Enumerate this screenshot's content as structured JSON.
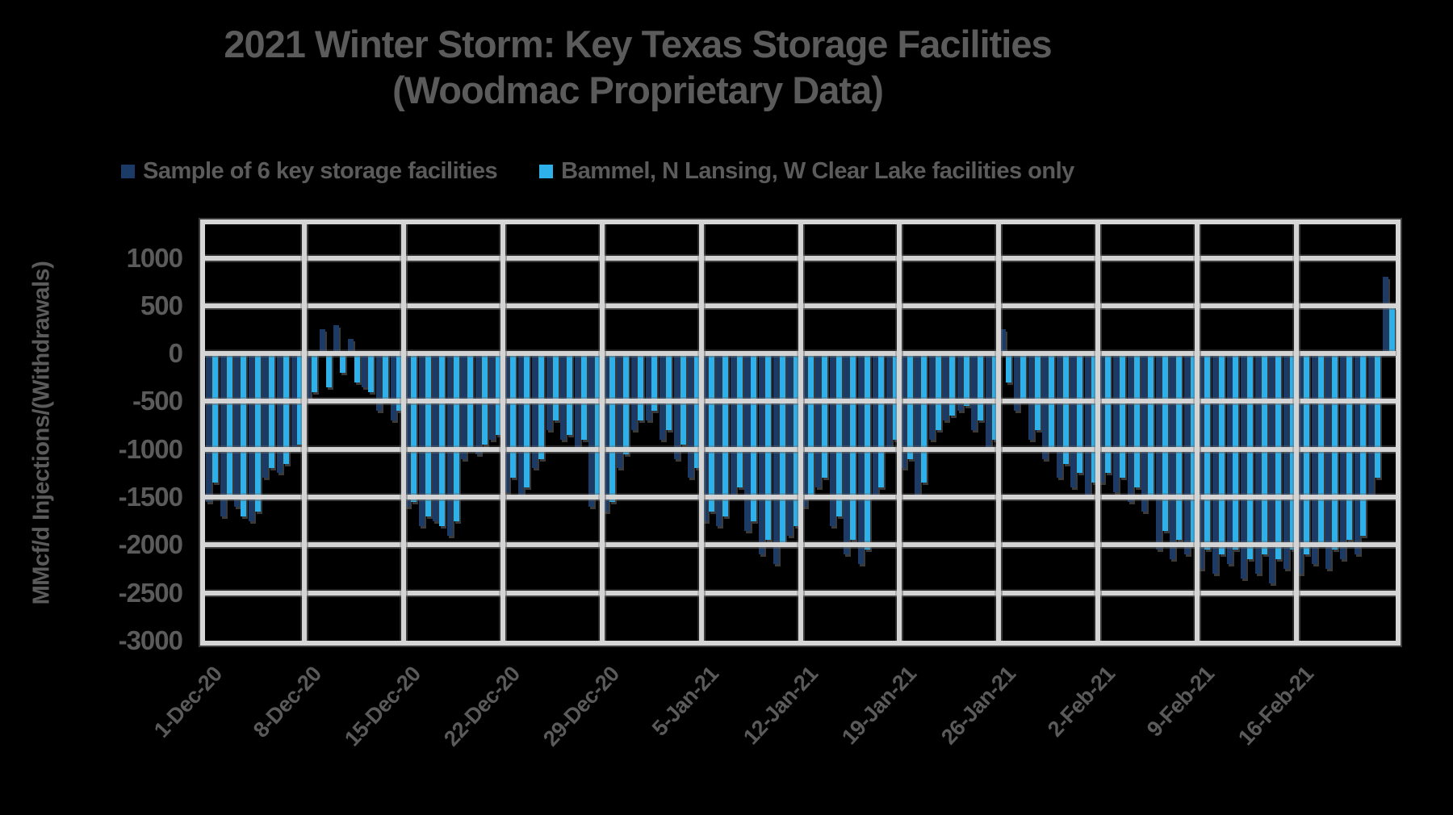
{
  "title": {
    "line1": "2021 Winter Storm: Key Texas Storage Facilities",
    "line2": "(Woodmac Proprietary Data)"
  },
  "legend": [
    {
      "label": "Sample of 6 key storage facilities",
      "color": "#1b3a66"
    },
    {
      "label": "Bammel, N Lansing, W Clear Lake facilities only",
      "color": "#2eb0ea"
    }
  ],
  "y_axis": {
    "label": "MMcf/d Injections/(Withdrawals)",
    "ticks": [
      1000,
      500,
      0,
      -500,
      -1000,
      -1500,
      -2000,
      -2500,
      -3000
    ]
  },
  "x_axis": {
    "tick_labels": [
      "1-Dec-20",
      "8-Dec-20",
      "15-Dec-20",
      "22-Dec-20",
      "29-Dec-20",
      "5-Jan-21",
      "12-Jan-21",
      "19-Jan-21",
      "26-Jan-21",
      "2-Feb-21",
      "9-Feb-21",
      "16-Feb-21"
    ],
    "tick_day_index": [
      0,
      7,
      14,
      21,
      28,
      35,
      42,
      49,
      56,
      63,
      70,
      77
    ]
  },
  "chart_data": {
    "type": "bar",
    "title": "2021 Winter Storm: Key Texas Storage Facilities (Woodmac Proprietary Data)",
    "ylabel": "MMcf/d Injections/(Withdrawals)",
    "ylim": [
      -3000,
      1350
    ],
    "grid_step": 500,
    "legend_position": "top",
    "grid": true,
    "x_dates": [
      "1-Dec-20",
      "2-Dec-20",
      "3-Dec-20",
      "4-Dec-20",
      "5-Dec-20",
      "6-Dec-20",
      "7-Dec-20",
      "8-Dec-20",
      "9-Dec-20",
      "10-Dec-20",
      "11-Dec-20",
      "12-Dec-20",
      "13-Dec-20",
      "14-Dec-20",
      "15-Dec-20",
      "16-Dec-20",
      "17-Dec-20",
      "18-Dec-20",
      "19-Dec-20",
      "20-Dec-20",
      "21-Dec-20",
      "22-Dec-20",
      "23-Dec-20",
      "24-Dec-20",
      "25-Dec-20",
      "26-Dec-20",
      "27-Dec-20",
      "28-Dec-20",
      "29-Dec-20",
      "30-Dec-20",
      "31-Dec-20",
      "1-Jan-21",
      "2-Jan-21",
      "3-Jan-21",
      "4-Jan-21",
      "5-Jan-21",
      "6-Jan-21",
      "7-Jan-21",
      "8-Jan-21",
      "9-Jan-21",
      "10-Jan-21",
      "11-Jan-21",
      "12-Jan-21",
      "13-Jan-21",
      "14-Jan-21",
      "15-Jan-21",
      "16-Jan-21",
      "17-Jan-21",
      "18-Jan-21",
      "19-Jan-21",
      "20-Jan-21",
      "21-Jan-21",
      "22-Jan-21",
      "23-Jan-21",
      "24-Jan-21",
      "25-Jan-21",
      "26-Jan-21",
      "27-Jan-21",
      "28-Jan-21",
      "29-Jan-21",
      "30-Jan-21",
      "31-Jan-21",
      "1-Feb-21",
      "2-Feb-21",
      "3-Feb-21",
      "4-Feb-21",
      "5-Feb-21",
      "6-Feb-21",
      "7-Feb-21",
      "8-Feb-21",
      "9-Feb-21",
      "10-Feb-21",
      "11-Feb-21",
      "12-Feb-21",
      "13-Feb-21",
      "14-Feb-21",
      "15-Feb-21",
      "16-Feb-21",
      "17-Feb-21",
      "18-Feb-21",
      "19-Feb-21",
      "20-Feb-21",
      "21-Feb-21",
      "22-Feb-21"
    ],
    "series": [
      {
        "name": "Sample of 6 key storage facilities",
        "color": "#1b3a66",
        "values": [
          -1550,
          -1700,
          -1600,
          -1750,
          -1300,
          -1250,
          -1000,
          -500,
          250,
          300,
          150,
          -350,
          -600,
          -700,
          -1600,
          -1800,
          -1750,
          -1900,
          -1100,
          -1050,
          -900,
          -1450,
          -1500,
          -1200,
          -800,
          -900,
          -1000,
          -1600,
          -1650,
          -1200,
          -800,
          -700,
          -900,
          -1100,
          -1300,
          -1750,
          -1800,
          -1500,
          -1850,
          -2100,
          -2200,
          -1900,
          -1600,
          -1400,
          -1800,
          -2100,
          -2200,
          -1500,
          -1000,
          -1200,
          -1500,
          -900,
          -700,
          -600,
          -800,
          -1000,
          250,
          -600,
          -900,
          -1100,
          -1300,
          -1400,
          -1500,
          -1350,
          -1450,
          -1550,
          -1650,
          -2050,
          -2150,
          -2100,
          -2250,
          -2300,
          -2200,
          -2350,
          -2300,
          -2400,
          -2250,
          -2300,
          -2200,
          -2250,
          -2150,
          -2100,
          -1500,
          800
        ]
      },
      {
        "name": "Bammel, N Lansing, W Clear Lake facilities only",
        "color": "#2eb0ea",
        "values": [
          -1350,
          -1500,
          -1700,
          -1650,
          -1200,
          -1150,
          -950,
          -400,
          -350,
          -200,
          -300,
          -400,
          -500,
          -600,
          -1550,
          -1700,
          -1800,
          -1750,
          -1000,
          -950,
          -850,
          -1300,
          -1400,
          -1100,
          -700,
          -850,
          -900,
          -1500,
          -1550,
          -1050,
          -700,
          -600,
          -800,
          -950,
          -1200,
          -1650,
          -1700,
          -1400,
          -1750,
          -1950,
          -2000,
          -1800,
          -1500,
          -1300,
          -1700,
          -1950,
          -2050,
          -1400,
          -900,
          -1100,
          -1350,
          -800,
          -650,
          -550,
          -700,
          -900,
          -300,
          -500,
          -800,
          -1000,
          -1150,
          -1250,
          -1350,
          -1250,
          -1300,
          -1400,
          -1500,
          -1850,
          -1950,
          -2000,
          -2050,
          -2100,
          -2050,
          -2150,
          -2100,
          -2150,
          -2050,
          -2100,
          -2000,
          -2050,
          -1950,
          -1900,
          -1300,
          480
        ]
      }
    ]
  },
  "colors": {
    "background": "#000000",
    "text": "#5b5b5b",
    "gridline": "#d4d4d4",
    "series_navy": "#1b3a66",
    "series_lightblue": "#2eb0ea"
  }
}
